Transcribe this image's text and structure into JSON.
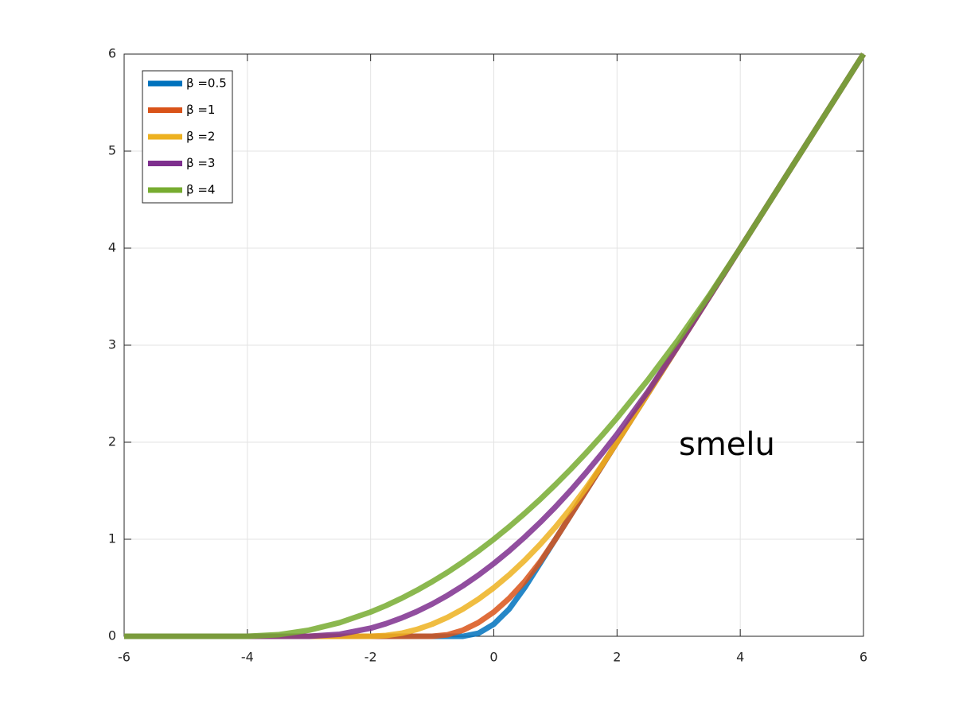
{
  "chart_data": {
    "type": "line",
    "annotation": "smelu",
    "x": [
      -6,
      -5,
      -4,
      -3.5,
      -3,
      -2.5,
      -2,
      -1.75,
      -1.5,
      -1.25,
      -1,
      -0.75,
      -0.5,
      -0.25,
      0,
      0.25,
      0.5,
      0.75,
      1,
      1.25,
      1.5,
      1.75,
      2,
      2.5,
      3,
      3.5,
      4,
      5,
      6
    ],
    "series": [
      {
        "name": "β =0.5",
        "color": "#0072bd",
        "values": [
          0,
          0,
          0,
          0,
          0,
          0,
          0,
          0,
          0,
          0,
          0,
          0,
          0,
          0.031,
          0.125,
          0.281,
          0.5,
          0.75,
          1,
          1.25,
          1.5,
          1.75,
          2,
          2.5,
          3,
          3.5,
          4,
          5,
          6
        ]
      },
      {
        "name": "β =1",
        "color": "#d95319",
        "values": [
          0,
          0,
          0,
          0,
          0,
          0,
          0,
          0,
          0,
          0,
          0,
          0.016,
          0.063,
          0.141,
          0.25,
          0.391,
          0.563,
          0.766,
          1,
          1.25,
          1.5,
          1.75,
          2,
          2.5,
          3,
          3.5,
          4,
          5,
          6
        ]
      },
      {
        "name": "β =2",
        "color": "#edb120",
        "values": [
          0,
          0,
          0,
          0,
          0,
          0,
          0,
          0.008,
          0.031,
          0.07,
          0.125,
          0.195,
          0.281,
          0.383,
          0.5,
          0.633,
          0.781,
          0.945,
          1.125,
          1.32,
          1.531,
          1.758,
          2,
          2.5,
          3,
          3.5,
          4,
          5,
          6
        ]
      },
      {
        "name": "β =3",
        "color": "#7e2f8e",
        "values": [
          0,
          0,
          0,
          0,
          0,
          0.021,
          0.083,
          0.13,
          0.188,
          0.255,
          0.333,
          0.422,
          0.521,
          0.63,
          0.75,
          0.88,
          1.021,
          1.172,
          1.333,
          1.505,
          1.688,
          1.88,
          2.083,
          2.521,
          3,
          3.5,
          4,
          5,
          6
        ]
      },
      {
        "name": "β =4",
        "color": "#77ac30",
        "values": [
          0,
          0,
          0,
          0.016,
          0.063,
          0.141,
          0.25,
          0.316,
          0.391,
          0.473,
          0.563,
          0.66,
          0.766,
          0.879,
          1,
          1.129,
          1.266,
          1.41,
          1.563,
          1.723,
          1.891,
          2.066,
          2.25,
          2.641,
          3.063,
          3.516,
          4,
          5,
          6
        ]
      }
    ],
    "xlim": [
      -6,
      6
    ],
    "ylim": [
      0,
      6
    ],
    "xticks": [
      -6,
      -4,
      -2,
      0,
      2,
      4,
      6
    ],
    "yticks": [
      0,
      1,
      2,
      3,
      4,
      5,
      6
    ],
    "grid": true,
    "legend": "upper left"
  }
}
